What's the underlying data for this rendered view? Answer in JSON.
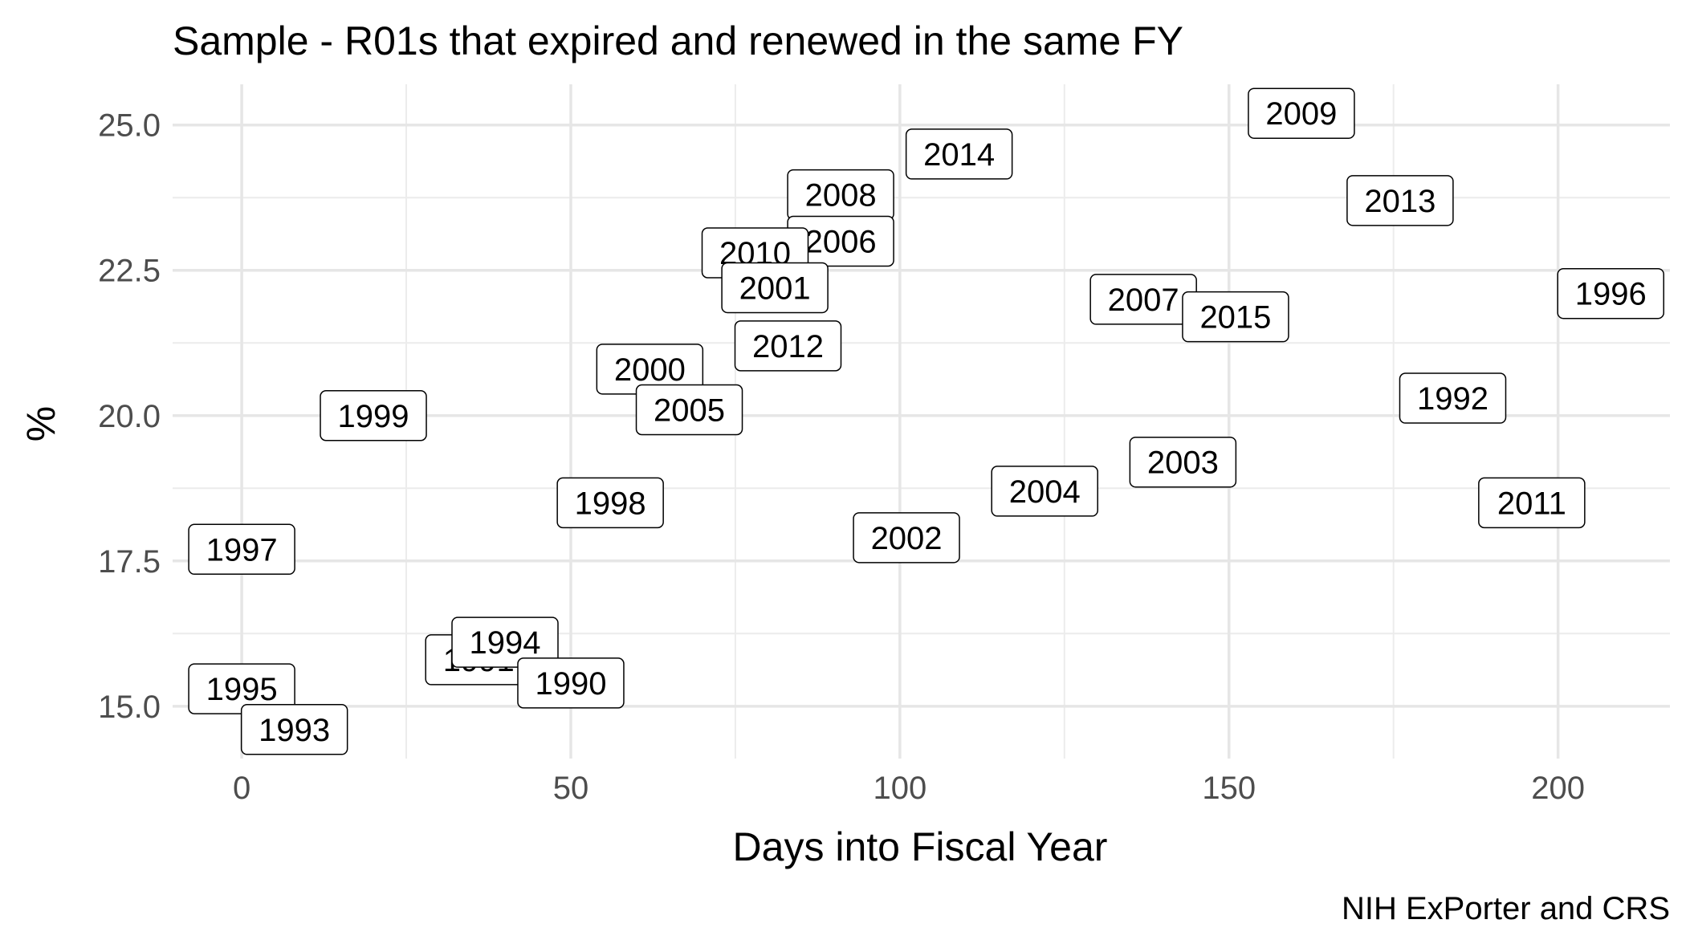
{
  "chart_data": {
    "type": "scatter",
    "title": "Sample - R01s that expired and renewed in the same FY",
    "xlabel": "Days into Fiscal Year",
    "ylabel": "%",
    "caption": "NIH ExPorter and CRS",
    "xlim": [
      -10.5,
      217
    ],
    "ylim": [
      14.1,
      25.7
    ],
    "x_ticks": [
      0,
      50,
      100,
      150,
      200
    ],
    "y_ticks": [
      15.0,
      17.5,
      20.0,
      22.5,
      25.0
    ],
    "x_tick_labels": [
      "0",
      "50",
      "100",
      "150",
      "200"
    ],
    "y_tick_labels": [
      "15.0",
      "17.5",
      "20.0",
      "22.5",
      "25.0"
    ],
    "grid": true,
    "legend": "none",
    "points": [
      {
        "label": "2009",
        "x": 161,
        "y": 25.2
      },
      {
        "label": "2014",
        "x": 109,
        "y": 24.5
      },
      {
        "label": "2008",
        "x": 91,
        "y": 23.8
      },
      {
        "label": "2013",
        "x": 176,
        "y": 23.7
      },
      {
        "label": "2006",
        "x": 91,
        "y": 23.0
      },
      {
        "label": "2010",
        "x": 78,
        "y": 22.8
      },
      {
        "label": "2001",
        "x": 81,
        "y": 22.2
      },
      {
        "label": "1996",
        "x": 208,
        "y": 22.1
      },
      {
        "label": "2007",
        "x": 137,
        "y": 22.0
      },
      {
        "label": "2015",
        "x": 151,
        "y": 21.7
      },
      {
        "label": "2012",
        "x": 83,
        "y": 21.2
      },
      {
        "label": "2000",
        "x": 62,
        "y": 20.8
      },
      {
        "label": "2005",
        "x": 68,
        "y": 20.1
      },
      {
        "label": "1992",
        "x": 184,
        "y": 20.3
      },
      {
        "label": "1999",
        "x": 20,
        "y": 20.0
      },
      {
        "label": "2003",
        "x": 143,
        "y": 19.2
      },
      {
        "label": "2004",
        "x": 122,
        "y": 18.7
      },
      {
        "label": "1998",
        "x": 56,
        "y": 18.5
      },
      {
        "label": "2011",
        "x": 196,
        "y": 18.5
      },
      {
        "label": "2002",
        "x": 101,
        "y": 17.9
      },
      {
        "label": "1997",
        "x": 0,
        "y": 17.7
      },
      {
        "label": "1991",
        "x": 36,
        "y": 15.8
      },
      {
        "label": "1994",
        "x": 40,
        "y": 16.1
      },
      {
        "label": "1990",
        "x": 50,
        "y": 15.4
      },
      {
        "label": "1995",
        "x": 0,
        "y": 15.3
      },
      {
        "label": "1993",
        "x": 8,
        "y": 14.6
      }
    ]
  }
}
